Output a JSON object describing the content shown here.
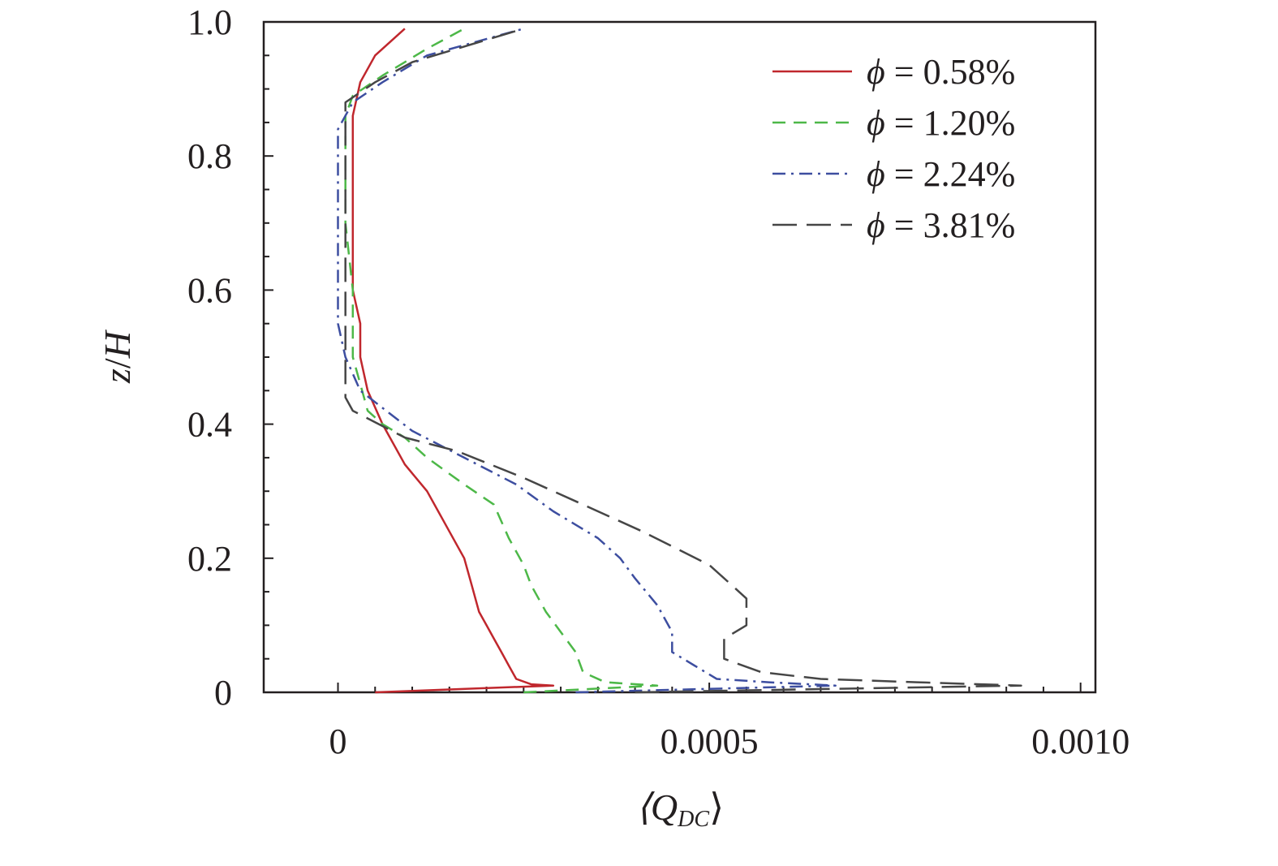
{
  "chart_data": {
    "type": "line",
    "xlabel": "⟨Q",
    "xlabel_sub": "DC",
    "xlabel_close": "⟩",
    "ylabel_z": "z",
    "ylabel_slash": "/",
    "ylabel_H": "H",
    "xlim": [
      -0.0001,
      0.00102
    ],
    "ylim": [
      0,
      1.0
    ],
    "xticks": [
      {
        "value": 0,
        "label": "0"
      },
      {
        "value": 0.0005,
        "label": "0.0005"
      },
      {
        "value": 0.001,
        "label": "0.0010"
      }
    ],
    "yticks": [
      {
        "value": 0,
        "label": "0"
      },
      {
        "value": 0.2,
        "label": "0.2"
      },
      {
        "value": 0.4,
        "label": "0.4"
      },
      {
        "value": 0.6,
        "label": "0.6"
      },
      {
        "value": 0.8,
        "label": "0.8"
      },
      {
        "value": 1.0,
        "label": "1.0"
      }
    ],
    "legend_position": "top-right",
    "grid": false,
    "series": [
      {
        "name": "ϕ = 0.58%",
        "legend_symbol": "ϕ",
        "legend_value": " = 0.58%",
        "color": "#c0272d",
        "dash": "",
        "points": [
          [
            5e-05,
            0.0
          ],
          [
            0.00029,
            0.01
          ],
          [
            0.00026,
            0.012
          ],
          [
            0.00024,
            0.02
          ],
          [
            0.00023,
            0.04
          ],
          [
            0.00022,
            0.06
          ],
          [
            0.00021,
            0.08
          ],
          [
            0.0002,
            0.1
          ],
          [
            0.00019,
            0.12
          ],
          [
            0.00018,
            0.16
          ],
          [
            0.00017,
            0.2
          ],
          [
            0.00015,
            0.24
          ],
          [
            0.00014,
            0.26
          ],
          [
            0.00012,
            0.3
          ],
          [
            9e-05,
            0.34
          ],
          [
            6e-05,
            0.4
          ],
          [
            4e-05,
            0.45
          ],
          [
            3e-05,
            0.5
          ],
          [
            3e-05,
            0.55
          ],
          [
            2e-05,
            0.6
          ],
          [
            2e-05,
            0.7
          ],
          [
            2e-05,
            0.8
          ],
          [
            2e-05,
            0.86
          ],
          [
            3e-05,
            0.91
          ],
          [
            5e-05,
            0.95
          ],
          [
            9e-05,
            0.99
          ]
        ]
      },
      {
        "name": "ϕ = 1.20%",
        "legend_symbol": "ϕ",
        "legend_value": " = 1.20%",
        "color": "#4db848",
        "dash": "16 10",
        "points": [
          [
            0.00025,
            0.0
          ],
          [
            0.00043,
            0.01
          ],
          [
            0.00036,
            0.015
          ],
          [
            0.00033,
            0.03
          ],
          [
            0.00032,
            0.06
          ],
          [
            0.0003,
            0.09
          ],
          [
            0.00028,
            0.12
          ],
          [
            0.00026,
            0.16
          ],
          [
            0.00025,
            0.19
          ],
          [
            0.00023,
            0.23
          ],
          [
            0.00021,
            0.28
          ],
          [
            0.00017,
            0.31
          ],
          [
            0.00012,
            0.35
          ],
          [
            9e-05,
            0.38
          ],
          [
            6e-05,
            0.4
          ],
          [
            4e-05,
            0.42
          ],
          [
            3e-05,
            0.46
          ],
          [
            2e-05,
            0.5
          ],
          [
            2e-05,
            0.6
          ],
          [
            1e-05,
            0.7
          ],
          [
            1e-05,
            0.8
          ],
          [
            1e-05,
            0.86
          ],
          [
            2e-05,
            0.89
          ],
          [
            6e-05,
            0.92
          ],
          [
            0.00012,
            0.96
          ],
          [
            0.00017,
            0.99
          ]
        ]
      },
      {
        "name": "ϕ = 2.24%",
        "legend_symbol": "ϕ",
        "legend_value": " = 2.24%",
        "color": "#3d4ea0",
        "dash": "16 7 3 7",
        "points": [
          [
            0.00032,
            0.0
          ],
          [
            0.00067,
            0.01
          ],
          [
            0.00058,
            0.015
          ],
          [
            0.00051,
            0.02
          ],
          [
            0.00048,
            0.04
          ],
          [
            0.00045,
            0.06
          ],
          [
            0.00045,
            0.09
          ],
          [
            0.00043,
            0.13
          ],
          [
            0.0004,
            0.17
          ],
          [
            0.00038,
            0.2
          ],
          [
            0.00035,
            0.23
          ],
          [
            0.00029,
            0.27
          ],
          [
            0.00024,
            0.31
          ],
          [
            0.00017,
            0.35
          ],
          [
            0.0001,
            0.39
          ],
          [
            3e-05,
            0.45
          ],
          [
            1e-05,
            0.5
          ],
          [
            0.0,
            0.55
          ],
          [
            0.0,
            0.6
          ],
          [
            0.0,
            0.7
          ],
          [
            0.0,
            0.8
          ],
          [
            0.0,
            0.84
          ],
          [
            2e-05,
            0.88
          ],
          [
            6e-05,
            0.91
          ],
          [
            0.00012,
            0.95
          ],
          [
            0.00025,
            0.99
          ]
        ]
      },
      {
        "name": "ϕ = 3.81%",
        "legend_symbol": "ϕ",
        "legend_value": " = 3.81%",
        "color": "#464646",
        "dash": "30 12",
        "points": [
          [
            0.0004,
            0.0
          ],
          [
            0.00092,
            0.01
          ],
          [
            0.00078,
            0.015
          ],
          [
            0.00065,
            0.02
          ],
          [
            0.00057,
            0.03
          ],
          [
            0.00052,
            0.05
          ],
          [
            0.00052,
            0.08
          ],
          [
            0.00055,
            0.1
          ],
          [
            0.00055,
            0.14
          ],
          [
            0.00053,
            0.16
          ],
          [
            0.0005,
            0.19
          ],
          [
            0.00041,
            0.24
          ],
          [
            0.00033,
            0.28
          ],
          [
            0.00025,
            0.32
          ],
          [
            0.00016,
            0.36
          ],
          [
            9e-05,
            0.38
          ],
          [
            2e-05,
            0.42
          ],
          [
            1e-05,
            0.44
          ],
          [
            1e-05,
            0.5
          ],
          [
            1e-05,
            0.6
          ],
          [
            1e-05,
            0.7
          ],
          [
            1e-05,
            0.8
          ],
          [
            1e-05,
            0.88
          ],
          [
            5e-05,
            0.91
          ],
          [
            0.0001,
            0.94
          ],
          [
            0.00025,
            0.99
          ]
        ]
      }
    ]
  }
}
